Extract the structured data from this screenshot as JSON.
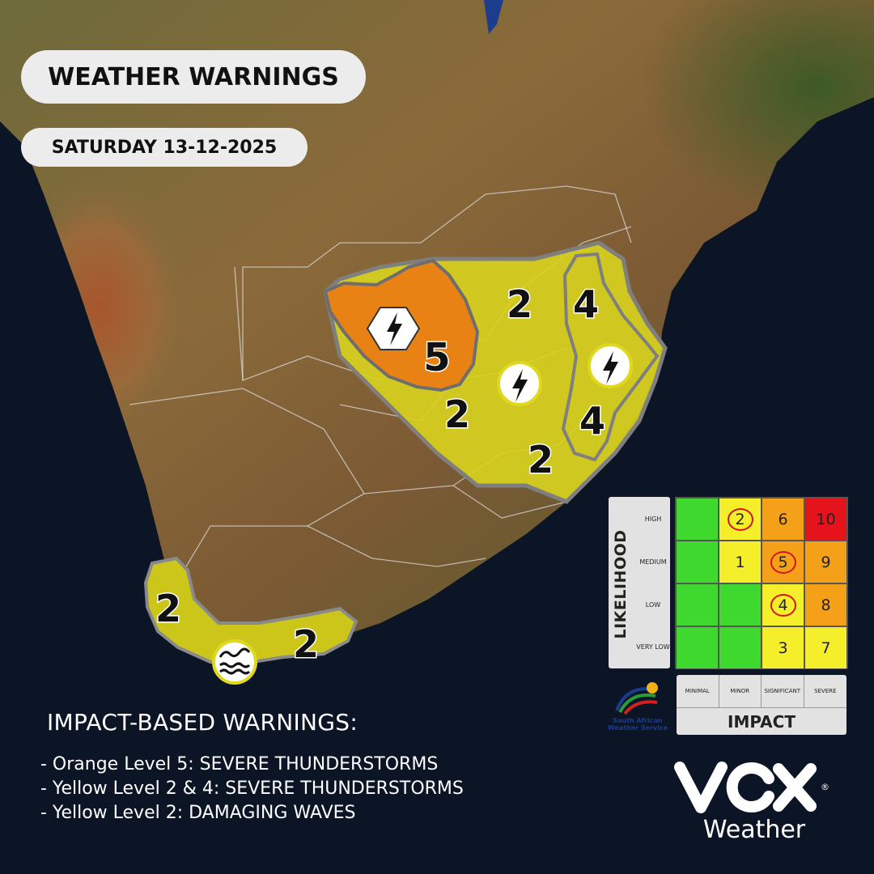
{
  "header": {
    "title": "WEATHER WARNINGS",
    "date": "SATURDAY 13-12-2025"
  },
  "map": {
    "regions": [
      {
        "color": "orange",
        "level": "5",
        "hazard": "thunderstorm-icon"
      },
      {
        "color": "yellow",
        "level": "2",
        "hazard": "thunderstorm-icon"
      },
      {
        "color": "yellow",
        "level": "4",
        "hazard": "thunderstorm-icon"
      },
      {
        "color": "yellow",
        "level": "2",
        "hazard": "waves-icon"
      }
    ],
    "labels": [
      "5",
      "2",
      "2",
      "2",
      "4",
      "4",
      "2",
      "2"
    ],
    "colors": {
      "orange": "#e98214",
      "yellow": "#d9d41f",
      "ocean": "#0b1526"
    }
  },
  "legend": {
    "title": "IMPACT-BASED WARNINGS:",
    "items": [
      "- Orange Level 5: SEVERE THUNDERSTORMS",
      "- Yellow Level 2 & 4: SEVERE THUNDERSTORMS",
      "- Yellow Level 2: DAMAGING WAVES"
    ]
  },
  "matrix": {
    "likelihood_title": "LIKELIHOOD",
    "row_labels": [
      "HIGH",
      "MEDIUM",
      "LOW",
      "VERY LOW"
    ],
    "impact_title": "IMPACT",
    "col_labels": [
      "MINIMAL",
      "MINOR",
      "SIGNIFICANT",
      "SEVERE"
    ],
    "cells": [
      [
        {
          "v": "",
          "c": "#3fd82f"
        },
        {
          "v": "2",
          "c": "#f5ee2a",
          "ring": true
        },
        {
          "v": "6",
          "c": "#f5a019"
        },
        {
          "v": "10",
          "c": "#e5141c"
        }
      ],
      [
        {
          "v": "",
          "c": "#3fd82f"
        },
        {
          "v": "1",
          "c": "#f5ee2a"
        },
        {
          "v": "5",
          "c": "#f5a019",
          "ring": true
        },
        {
          "v": "9",
          "c": "#f5a019"
        }
      ],
      [
        {
          "v": "",
          "c": "#3fd82f"
        },
        {
          "v": "",
          "c": "#3fd82f"
        },
        {
          "v": "4",
          "c": "#f5ee2a",
          "ring": true
        },
        {
          "v": "8",
          "c": "#f5a019"
        }
      ],
      [
        {
          "v": "",
          "c": "#3fd82f"
        },
        {
          "v": "",
          "c": "#3fd82f"
        },
        {
          "v": "3",
          "c": "#f5ee2a"
        },
        {
          "v": "7",
          "c": "#f5ee2a"
        }
      ]
    ]
  },
  "saws_logo": {
    "line1": "South African",
    "line2": "Weather Service"
  },
  "brand": {
    "logo_text": "VOX",
    "word": "Weather",
    "reg": "®"
  }
}
